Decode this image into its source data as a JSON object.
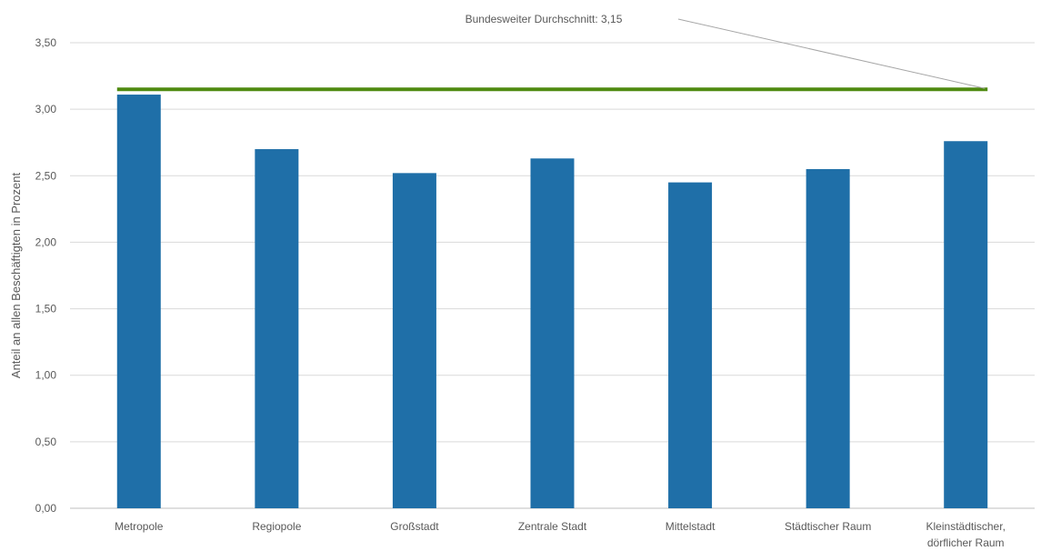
{
  "chart_data": {
    "type": "bar",
    "title": "",
    "xlabel": "",
    "ylabel": "Anteil an allen Beschäftigten in Prozent",
    "ylim": [
      0,
      3.5
    ],
    "y_ticks": [
      "0,00",
      "0,50",
      "1,00",
      "1,50",
      "2,00",
      "2,50",
      "3,00",
      "3,50"
    ],
    "y_tick_values": [
      0,
      0.5,
      1.0,
      1.5,
      2.0,
      2.5,
      3.0,
      3.5
    ],
    "categories": [
      [
        "Metropole"
      ],
      [
        "Regiopole"
      ],
      [
        "Großstadt"
      ],
      [
        "Zentrale Stadt"
      ],
      [
        "Mittelstadt"
      ],
      [
        "Städtischer Raum"
      ],
      [
        "Kleinstädtischer,",
        "dörflicher Raum"
      ]
    ],
    "values": [
      3.11,
      2.7,
      2.52,
      2.63,
      2.45,
      2.55,
      2.76
    ],
    "bar_color": "#1f6fa8",
    "grid": true,
    "legend": "none",
    "reference_line": {
      "value": 3.15,
      "color": "#4f8a10",
      "annotation": "Bundesweiter  Durchschnitt:  3,15",
      "leader_color": "#a6a6a6"
    }
  }
}
